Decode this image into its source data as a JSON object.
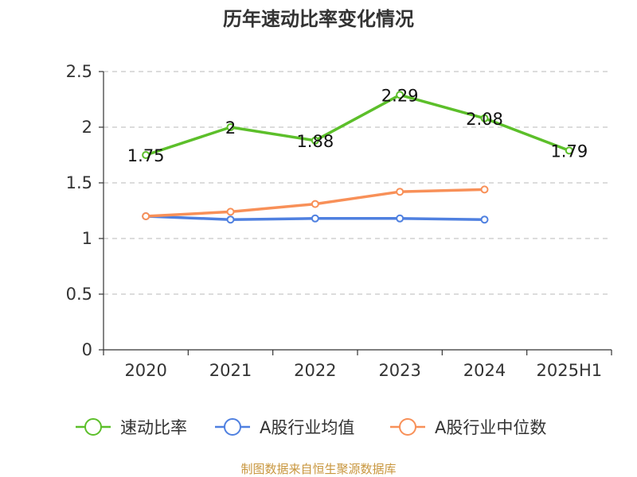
{
  "chart_data": {
    "type": "line",
    "title": "历年速动比率变化情况",
    "categories": [
      "2020",
      "2021",
      "2022",
      "2023",
      "2024",
      "2025H1"
    ],
    "ylim": [
      0,
      2.5
    ],
    "yticks": [
      "0",
      "0.5",
      "1",
      "1.5",
      "2",
      "2.5"
    ],
    "grid": true,
    "legend_position": "bottom",
    "series": [
      {
        "name": "速动比率",
        "color": "#5cbf2a",
        "values": [
          1.75,
          2,
          1.88,
          2.29,
          2.08,
          1.79
        ],
        "labels": [
          "1.75",
          "2",
          "1.88",
          "2.29",
          "2.08",
          "1.79"
        ]
      },
      {
        "name": "A股行业均值",
        "color": "#4f80e0",
        "values": [
          1.2,
          1.17,
          1.18,
          1.18,
          1.17,
          null
        ]
      },
      {
        "name": "A股行业中位数",
        "color": "#f89058",
        "values": [
          1.2,
          1.24,
          1.31,
          1.42,
          1.44,
          null
        ]
      }
    ]
  },
  "source_text": "制图数据来自恒生聚源数据库"
}
